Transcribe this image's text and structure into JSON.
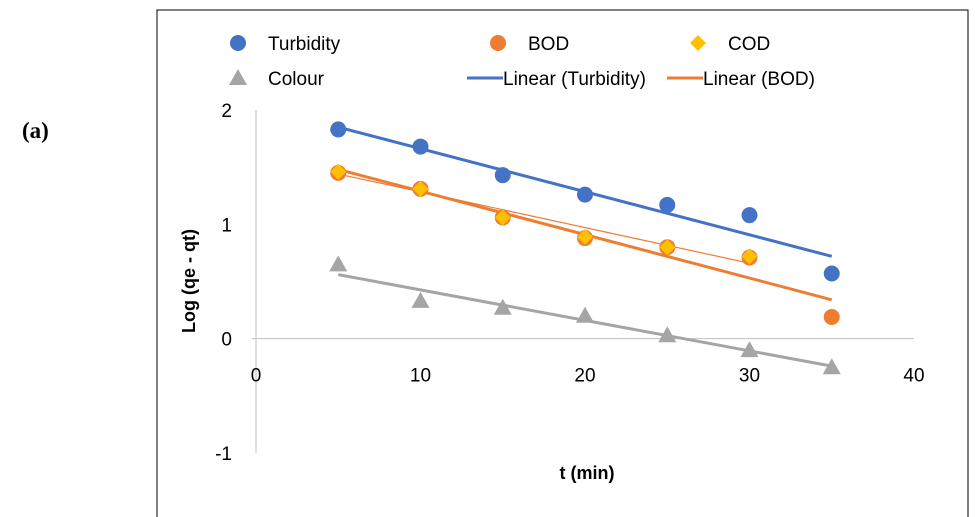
{
  "panel_label": "(a)",
  "chart_data": {
    "type": "scatter",
    "xlabel": "t (min)",
    "ylabel": "Log (qe - qt)",
    "xlim": [
      0,
      40
    ],
    "ylim": [
      -1,
      2
    ],
    "x_ticks": [
      "0",
      "10",
      "20",
      "30",
      "40"
    ],
    "y_ticks": [
      "-1",
      "0",
      "1",
      "2"
    ],
    "grid": false,
    "legend_position": "top",
    "x": [
      5,
      10,
      15,
      20,
      25,
      30,
      35
    ],
    "series": [
      {
        "name": "Turbidity",
        "marker": "circle",
        "color": "#4472C4",
        "values": [
          1.83,
          1.68,
          1.43,
          1.26,
          1.17,
          1.08,
          0.57
        ]
      },
      {
        "name": "BOD",
        "marker": "circle",
        "color": "#ED7D31",
        "values": [
          1.45,
          1.31,
          1.06,
          0.88,
          0.8,
          0.71,
          0.19
        ]
      },
      {
        "name": "COD",
        "marker": "diamond",
        "color": "#FFC000",
        "values": [
          1.46,
          1.31,
          1.06,
          0.89,
          0.8,
          0.72,
          null
        ]
      },
      {
        "name": "Colour",
        "marker": "triangle",
        "color": "#A5A5A5",
        "values": [
          0.65,
          0.33,
          0.27,
          0.2,
          0.03,
          -0.1,
          -0.25
        ]
      }
    ],
    "trendlines": [
      {
        "name": "Linear (Turbidity)",
        "color": "#4472C4",
        "width": 3,
        "x": [
          5,
          35
        ],
        "y": [
          1.85,
          0.72
        ],
        "in_legend": true
      },
      {
        "name": "Linear (BOD)",
        "color": "#ED7D31",
        "width": 3,
        "x": [
          5,
          35
        ],
        "y": [
          1.48,
          0.34
        ],
        "in_legend": true
      },
      {
        "name": "",
        "color": "#ED7D31",
        "width": 1.2,
        "x": [
          5,
          30
        ],
        "y": [
          1.44,
          0.66
        ],
        "in_legend": false
      },
      {
        "name": "",
        "color": "#A5A5A5",
        "width": 3,
        "x": [
          5,
          35
        ],
        "y": [
          0.56,
          -0.24
        ],
        "in_legend": false
      }
    ]
  }
}
